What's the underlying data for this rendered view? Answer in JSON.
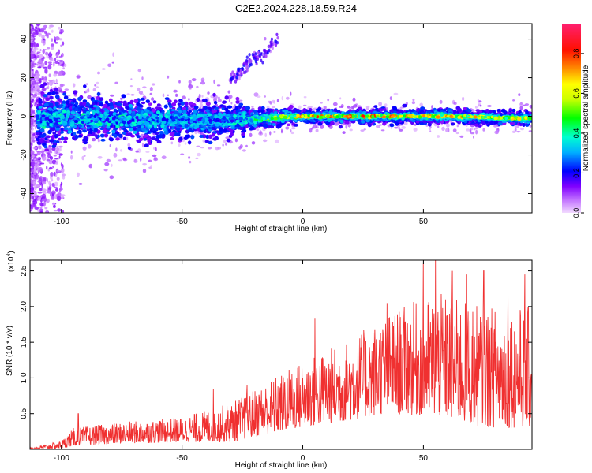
{
  "title": "C2E2.2024.228.18.59.R24",
  "chart_data": [
    {
      "type": "heatmap",
      "xlabel": "Height of straight line (km)",
      "ylabel": "Frequency (Hz)",
      "xlim": [
        -113,
        95
      ],
      "ylim": [
        -50,
        48
      ],
      "xticks": [
        -100,
        -50,
        0,
        50
      ],
      "xtick_labels": [
        "-100",
        "-50",
        "0",
        "50"
      ],
      "yticks": [
        40,
        20,
        0,
        -20,
        -40
      ],
      "ytick_labels": [
        "40",
        "20",
        "0",
        "-20",
        "-40"
      ],
      "colorbar": {
        "label": "Normalized spectral amplitude",
        "range": [
          0,
          0.95
        ],
        "ticks": [
          0.0,
          0.2,
          0.4,
          0.6,
          0.8
        ],
        "tick_labels": [
          "0.0",
          "0.2",
          "0.4",
          "0.6",
          "0.8"
        ],
        "colors": [
          "#f2d9ff",
          "#a000ff",
          "#0000ff",
          "#00ffff",
          "#00ff00",
          "#ffff00",
          "#ff8000",
          "#ff0000",
          "#ff1a80"
        ]
      },
      "band": [
        {
          "x": -110,
          "center": -1,
          "halfwidth": 12,
          "amp": 0.35
        },
        {
          "x": -90,
          "center": -1,
          "halfwidth": 10,
          "amp": 0.35
        },
        {
          "x": -70,
          "center": -2,
          "halfwidth": 9,
          "amp": 0.35
        },
        {
          "x": -50,
          "center": -2,
          "halfwidth": 8,
          "amp": 0.33
        },
        {
          "x": -30,
          "center": -2,
          "halfwidth": 7,
          "amp": 0.33
        },
        {
          "x": -15,
          "center": -1,
          "halfwidth": 4,
          "amp": 0.55
        },
        {
          "x": 0,
          "center": 0,
          "halfwidth": 3,
          "amp": 0.8
        },
        {
          "x": 20,
          "center": 0,
          "halfwidth": 3,
          "amp": 0.85
        },
        {
          "x": 40,
          "center": 0,
          "halfwidth": 3,
          "amp": 0.8
        },
        {
          "x": 60,
          "center": 0,
          "halfwidth": 3,
          "amp": 0.75
        },
        {
          "x": 90,
          "center": -1,
          "halfwidth": 3,
          "amp": 0.7
        }
      ],
      "feature": [
        {
          "x": -30,
          "y": 18
        },
        {
          "x": -22,
          "y": 28
        },
        {
          "x": -15,
          "y": 35
        },
        {
          "x": -10,
          "y": 40
        }
      ]
    },
    {
      "type": "line",
      "xlabel": "Height of straight line (km)",
      "ylabel": "SNR (10 * v/v)",
      "exponent_label": "(x10",
      "exponent_power": "4",
      "exponent_close": ")",
      "xlim": [
        -113,
        95
      ],
      "ylim": [
        0,
        2.65
      ],
      "xticks": [
        -100,
        -50,
        0,
        50
      ],
      "xtick_labels": [
        "-100",
        "-50",
        "0",
        "50"
      ],
      "yticks": [
        0.5,
        1.0,
        1.5,
        2.0,
        2.5
      ],
      "ytick_labels": [
        "0.5",
        "1.0",
        "1.5",
        "2.0",
        "2.5"
      ],
      "line_color": "#f03030",
      "envelope": [
        {
          "x": -113,
          "lo": 0.0,
          "hi": 0.02
        },
        {
          "x": -100,
          "lo": 0.01,
          "hi": 0.12
        },
        {
          "x": -95,
          "lo": 0.05,
          "hi": 0.3
        },
        {
          "x": -75,
          "lo": 0.08,
          "hi": 0.38
        },
        {
          "x": -50,
          "lo": 0.1,
          "hi": 0.45
        },
        {
          "x": -30,
          "lo": 0.1,
          "hi": 0.65
        },
        {
          "x": -15,
          "lo": 0.2,
          "hi": 0.95
        },
        {
          "x": 0,
          "lo": 0.3,
          "hi": 1.25
        },
        {
          "x": 20,
          "lo": 0.4,
          "hi": 1.55
        },
        {
          "x": 35,
          "lo": 0.5,
          "hi": 1.9
        },
        {
          "x": 55,
          "lo": 0.45,
          "hi": 2.2
        },
        {
          "x": 75,
          "lo": 0.3,
          "hi": 2.0
        },
        {
          "x": 95,
          "lo": 0.3,
          "hi": 2.0
        }
      ],
      "peaks": [
        {
          "x": -93,
          "y": 0.5
        },
        {
          "x": -37,
          "y": 0.85
        },
        {
          "x": -23,
          "y": 0.9
        },
        {
          "x": 5,
          "y": 1.83
        },
        {
          "x": 35,
          "y": 2.05
        },
        {
          "x": 50,
          "y": 2.6
        },
        {
          "x": 55,
          "y": 2.65
        },
        {
          "x": 62,
          "y": 2.5
        },
        {
          "x": 68,
          "y": 2.45
        },
        {
          "x": 75,
          "y": 2.5
        },
        {
          "x": 85,
          "y": 2.2
        },
        {
          "x": 92,
          "y": 2.45
        }
      ]
    }
  ]
}
